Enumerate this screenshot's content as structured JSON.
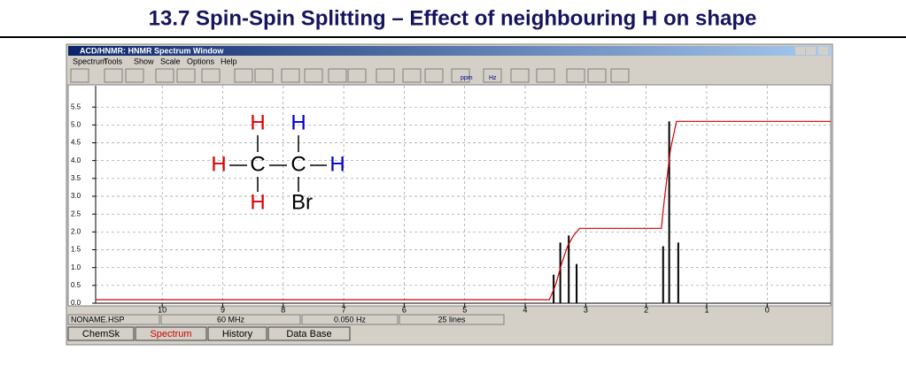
{
  "slide": {
    "title": "13.7 Spin-Spin Splitting – Effect of neighbouring H on shape"
  },
  "window": {
    "title": "ACD/HNMR: HNMR Spectrum Window",
    "menu": [
      "Spectrum",
      "Tools",
      "Show",
      "Scale",
      "Options",
      "Help"
    ],
    "toolbar_labels": [
      "ppm",
      "Hz"
    ],
    "status": [
      "NONAME.HSP",
      "60 MHz",
      "0.050 Hz",
      "25 lines"
    ],
    "tabs": [
      "ChemSk",
      "Spectrum",
      "History",
      "Data Base"
    ]
  },
  "molecule": {
    "atoms": [
      {
        "label": "H",
        "color": "#e00000"
      },
      {
        "label": "H",
        "color": "#0000d0"
      },
      {
        "label": "H",
        "color": "#e00000"
      },
      {
        "label": "C",
        "color": "#000000"
      },
      {
        "label": "C",
        "color": "#000000"
      },
      {
        "label": "H",
        "color": "#0000d0"
      },
      {
        "label": "H",
        "color": "#e00000"
      },
      {
        "label": "Br",
        "color": "#000000"
      }
    ]
  },
  "spectrum": {
    "xlim": [
      11.1,
      -1.05
    ],
    "ylim": [
      0,
      6
    ],
    "xticks": [
      10,
      9,
      8,
      7,
      6,
      5,
      4,
      3,
      2,
      1,
      0
    ],
    "yticks": [
      {
        "value": 0,
        "label": "0.0"
      },
      0.5,
      {
        "value": 1,
        "label": "1.0"
      },
      1.5,
      {
        "value": 2,
        "label": "2.0"
      },
      2.5,
      {
        "value": 3,
        "label": "3.0"
      },
      3.5,
      {
        "value": 4,
        "label": "4.0"
      },
      4.5,
      {
        "value": 5,
        "label": "5.0"
      },
      5.5
    ],
    "grid": true,
    "peaks": {
      "x": [
        3.53,
        3.42,
        3.28,
        3.15,
        1.72,
        1.62,
        1.47
      ],
      "values": [
        0.8,
        1.7,
        1.9,
        1.1,
        1.6,
        5.1,
        1.7
      ],
      "color": "#000000"
    },
    "integral": {
      "x": [
        11.1,
        3.6,
        3.5,
        3.4,
        3.3,
        3.2,
        3.1,
        1.75,
        1.7,
        1.6,
        1.5,
        -1.05
      ],
      "values": [
        0.1,
        0.1,
        0.5,
        1.1,
        1.6,
        1.9,
        2.1,
        2.1,
        2.9,
        4.3,
        5.1,
        5.1
      ],
      "color": "#d00000"
    }
  }
}
